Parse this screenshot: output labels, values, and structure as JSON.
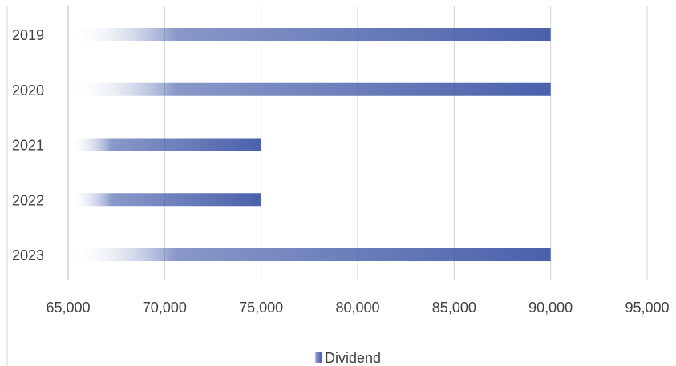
{
  "chart_data": {
    "type": "bar",
    "orientation": "horizontal",
    "categories": [
      "2019",
      "2020",
      "2021",
      "2022",
      "2023"
    ],
    "series": [
      {
        "name": "Dividend",
        "values": [
          90000,
          90000,
          75000,
          75000,
          90000
        ]
      }
    ],
    "xlim": [
      65000,
      95000
    ],
    "xticks": [
      65000,
      70000,
      75000,
      80000,
      85000,
      90000,
      95000
    ],
    "xtick_labels": [
      "65,000",
      "70,000",
      "75,000",
      "80,000",
      "85,000",
      "90,000",
      "95,000"
    ],
    "title": "",
    "xlabel": "",
    "ylabel": "",
    "grid": "vertical",
    "legend_position": "bottom",
    "bar_color": "#4a61ab",
    "bar_fade_color": "#ffffff",
    "gridline_color": "#d0d0d0",
    "axis_color": "#d9d9d9",
    "text_color": "#404040"
  }
}
